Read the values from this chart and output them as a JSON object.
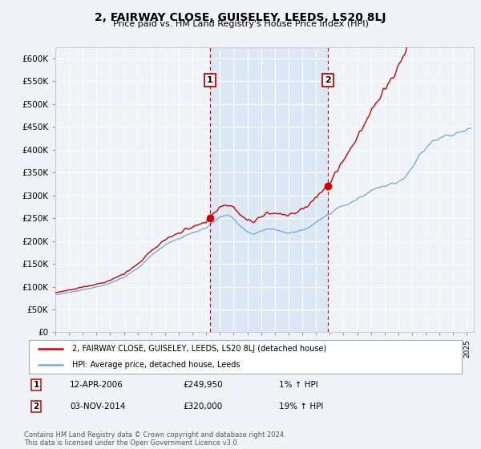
{
  "title": "2, FAIRWAY CLOSE, GUISELEY, LEEDS, LS20 8LJ",
  "subtitle": "Price paid vs. HM Land Registry's House Price Index (HPI)",
  "background_color": "#f0f4f8",
  "plot_bg_color": "#f0f4f8",
  "shaded_region_color": "#dce8f5",
  "ylim": [
    0,
    625000
  ],
  "yticks": [
    0,
    50000,
    100000,
    150000,
    200000,
    250000,
    300000,
    350000,
    400000,
    450000,
    500000,
    550000,
    600000
  ],
  "ytick_labels": [
    "£0",
    "£50K",
    "£100K",
    "£150K",
    "£200K",
    "£250K",
    "£300K",
    "£350K",
    "£400K",
    "£450K",
    "£500K",
    "£550K",
    "£600K"
  ],
  "sale1_date": 2006.28,
  "sale1_price": 249950,
  "sale2_date": 2014.84,
  "sale2_price": 320000,
  "hpi_color": "#7aadd4",
  "price_color": "#cc0000",
  "vline_color": "#cc0000",
  "legend_line1": "2, FAIRWAY CLOSE, GUISELEY, LEEDS, LS20 8LJ (detached house)",
  "legend_line2": "HPI: Average price, detached house, Leeds",
  "footer": "Contains HM Land Registry data © Crown copyright and database right 2024.\nThis data is licensed under the Open Government Licence v3.0.",
  "xmin": 1995.0,
  "xmax": 2025.5,
  "figwidth": 6.0,
  "figheight": 5.6,
  "dpi": 100
}
